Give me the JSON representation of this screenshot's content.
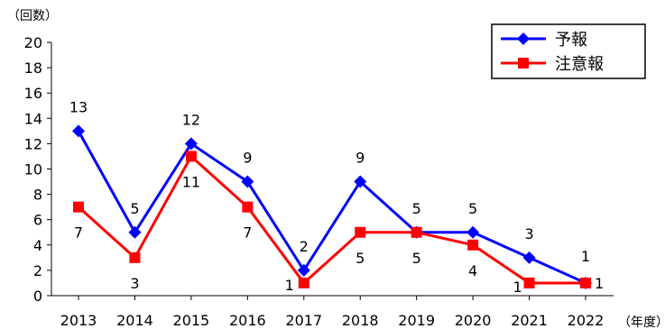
{
  "chart_data": {
    "type": "line",
    "ylabel": "（回数）",
    "xlabel": "（年度）",
    "ylim": [
      0,
      20
    ],
    "yticks": [
      "0",
      "2",
      "4",
      "6",
      "8",
      "10",
      "12",
      "14",
      "16",
      "18",
      "20"
    ],
    "categories": [
      "2013",
      "2014",
      "2015",
      "2016",
      "2017",
      "2018",
      "2019",
      "2020",
      "2021",
      "2022"
    ],
    "legend_position": "top-right",
    "grid": false,
    "series": [
      {
        "name": "予報",
        "color": "#0000ff",
        "marker": "diamond",
        "values": [
          13,
          5,
          12,
          9,
          2,
          9,
          5,
          5,
          3,
          1
        ],
        "labels": [
          "13",
          "5",
          "12",
          "9",
          "2",
          "9",
          "5",
          "5",
          "3",
          "1"
        ]
      },
      {
        "name": "注意報",
        "color": "#ff0000",
        "marker": "square",
        "values": [
          7,
          3,
          11,
          7,
          1,
          5,
          5,
          4,
          1,
          1
        ],
        "labels": [
          "7",
          "3",
          "11",
          "7",
          "1",
          "5",
          "5",
          "4",
          "1",
          "1"
        ]
      }
    ]
  }
}
